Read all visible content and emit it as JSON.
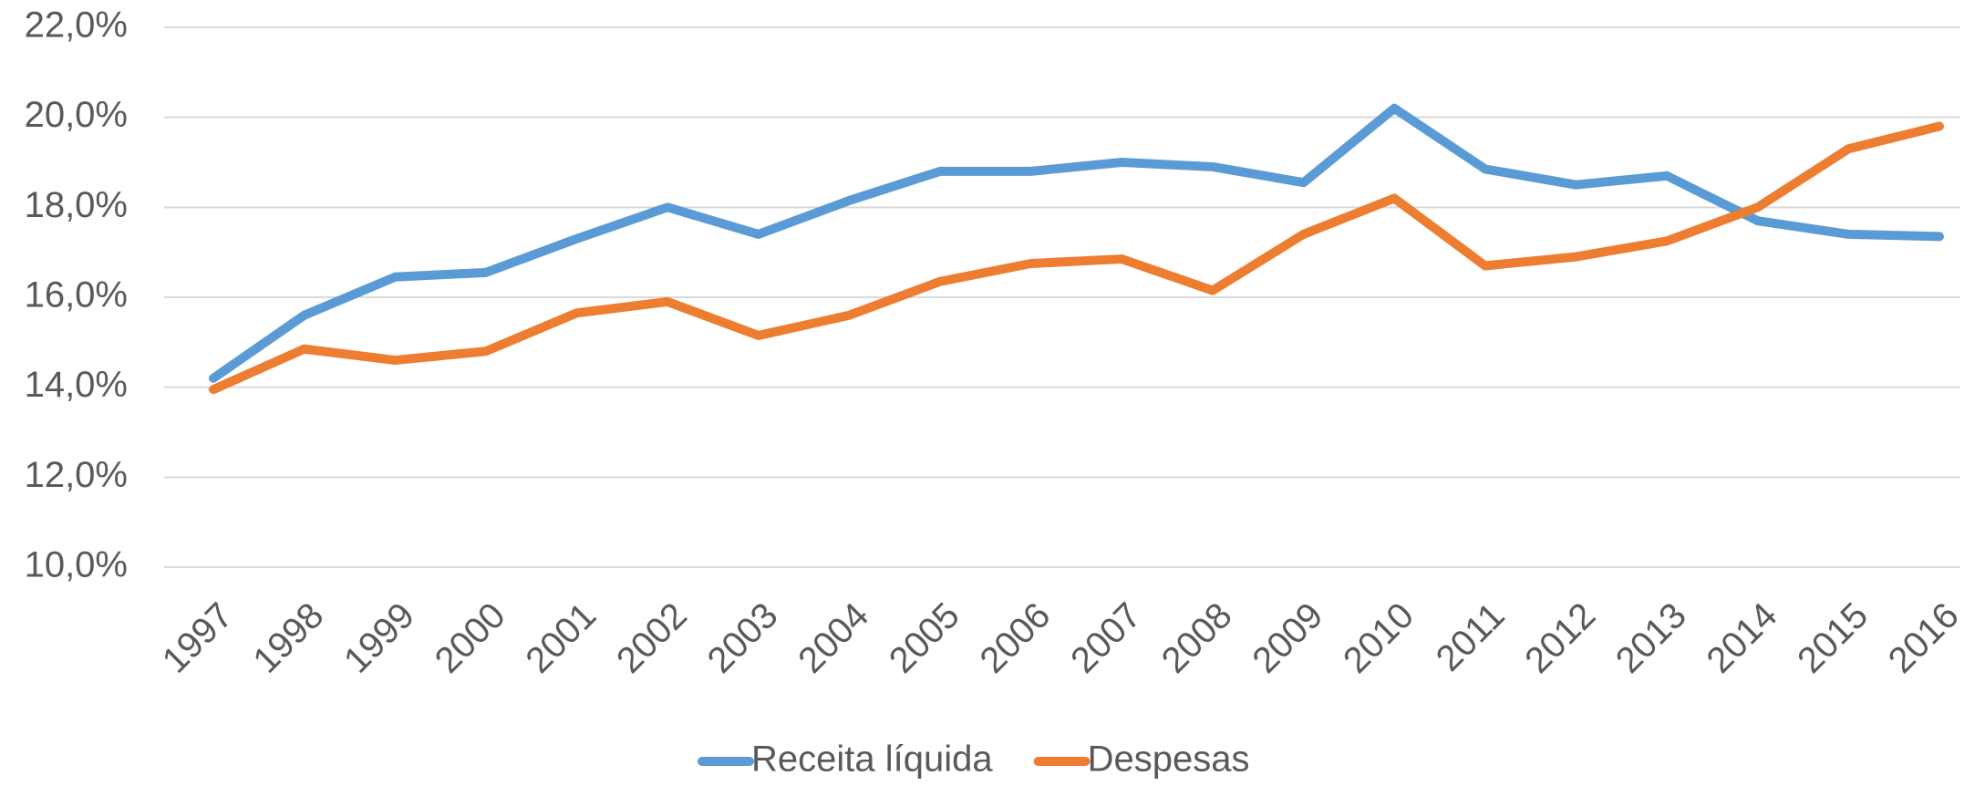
{
  "chart_data": {
    "type": "line",
    "categories": [
      "1997",
      "1998",
      "1999",
      "2000",
      "2001",
      "2002",
      "2003",
      "2004",
      "2005",
      "2006",
      "2007",
      "2008",
      "2009",
      "2010",
      "2011",
      "2012",
      "2013",
      "2014",
      "2015",
      "2016"
    ],
    "series": [
      {
        "name": "Receita líquida",
        "color": "#5b9bd5",
        "values": [
          14.2,
          15.6,
          16.45,
          16.55,
          17.3,
          18.0,
          17.4,
          18.15,
          18.8,
          18.8,
          19.0,
          18.9,
          18.55,
          20.2,
          18.85,
          18.5,
          18.7,
          17.7,
          17.4,
          17.35
        ]
      },
      {
        "name": "Despesas",
        "color": "#ed7d31",
        "values": [
          13.95,
          14.85,
          14.6,
          14.8,
          15.65,
          15.9,
          15.15,
          15.6,
          16.35,
          16.75,
          16.85,
          16.15,
          17.4,
          18.2,
          16.7,
          16.9,
          17.25,
          18.0,
          19.3,
          19.8
        ]
      }
    ],
    "ylim": [
      10,
      22
    ],
    "yticks": [
      {
        "value": 10,
        "label": "10,0%"
      },
      {
        "value": 12,
        "label": "12,0%"
      },
      {
        "value": 14,
        "label": "14,0%"
      },
      {
        "value": 16,
        "label": "16,0%"
      },
      {
        "value": 18,
        "label": "18,0%"
      },
      {
        "value": 20,
        "label": "20,0%"
      },
      {
        "value": 22,
        "label": "22,0%"
      }
    ],
    "grid": true,
    "legend": "bottom"
  }
}
